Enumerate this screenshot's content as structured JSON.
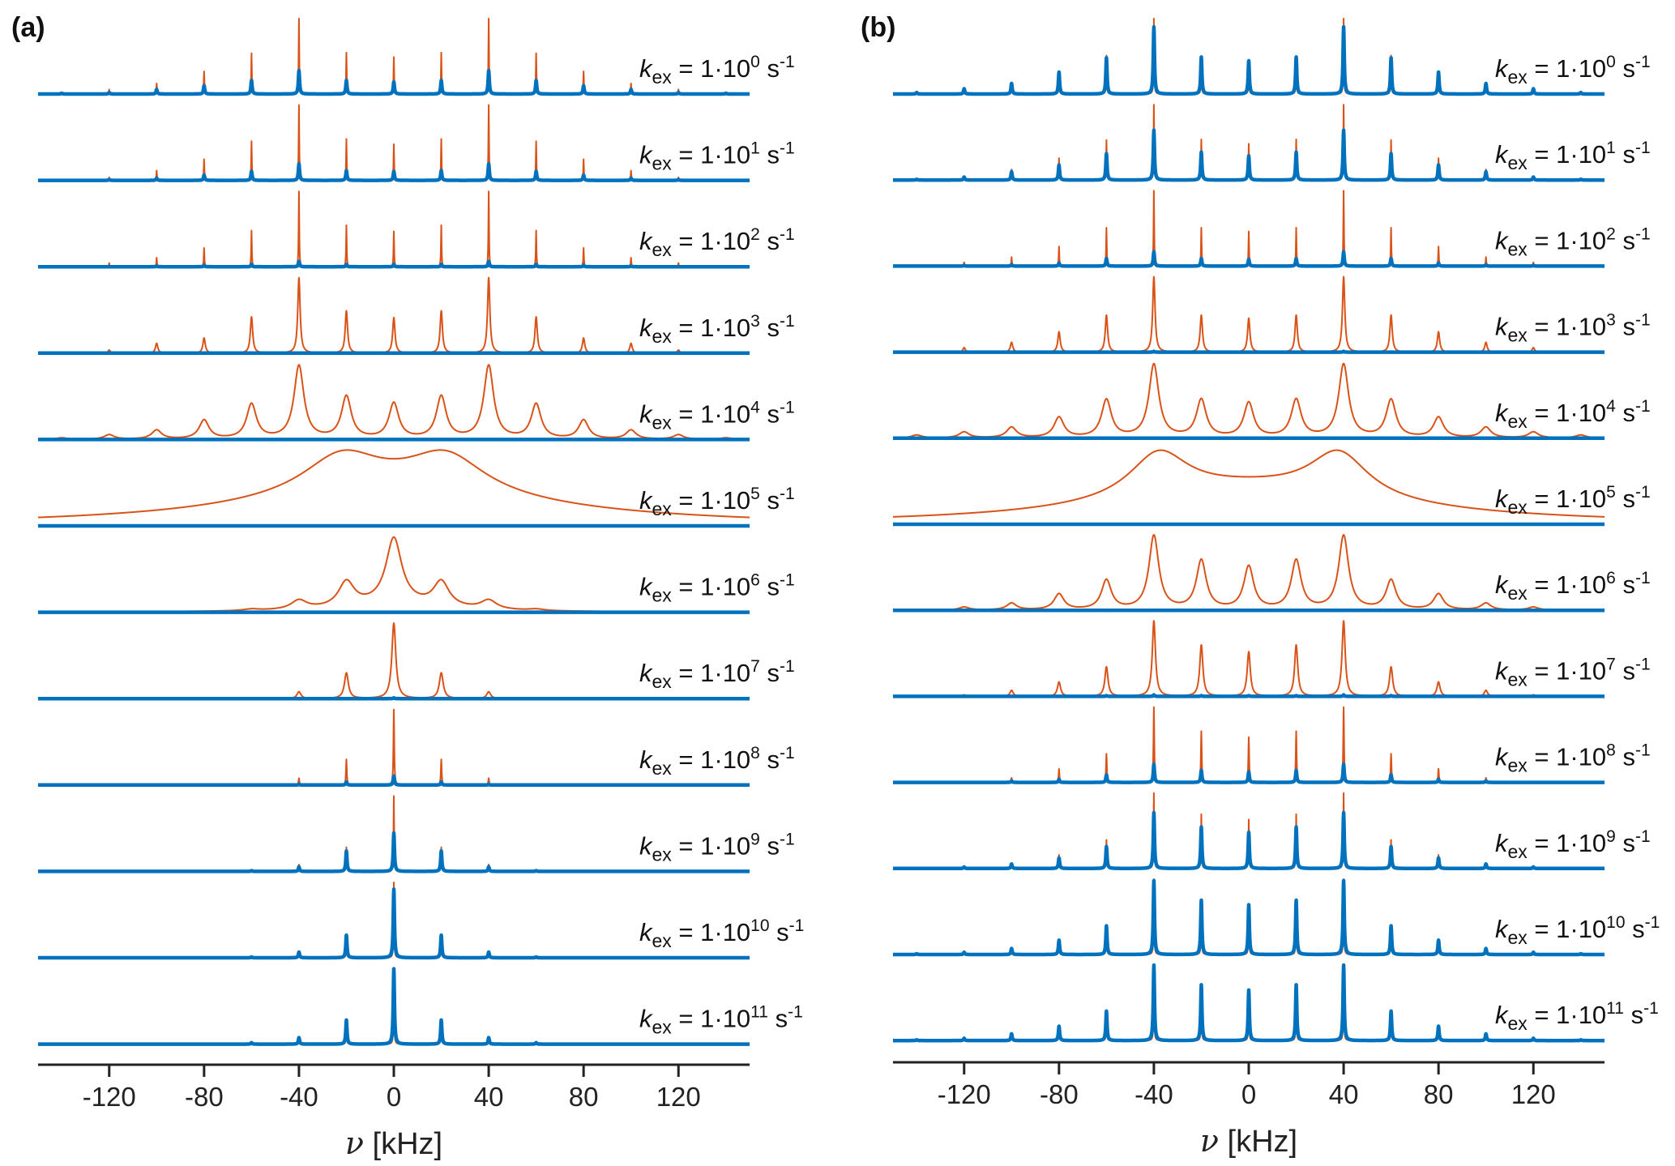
{
  "chart_data": [
    {
      "type": "line",
      "panel_label": "(a)",
      "xlabel_symbol": "ν",
      "xlabel_unit": " [kHz]",
      "xlim": [
        -150,
        150
      ],
      "x_tick_values": [
        -120,
        -80,
        -40,
        0,
        40,
        80,
        120
      ],
      "x_ticks": [
        "-120",
        "-80",
        "-40",
        "0",
        "40",
        "80",
        "120"
      ],
      "grid": false,
      "sideband_spacing_khz": 20,
      "series_colors": {
        "orange": "#D95319",
        "blue": "#0072BD"
      },
      "label_parts": {
        "symbol": "k",
        "subscript": "ex",
        "mantissa": " = 1·10",
        "unit": " s",
        "unit_exponent": "-1"
      },
      "traces": [
        {
          "exponent": "0",
          "orange": {
            "hwhm": 0.15,
            "amps": [
              0.49,
              0.55,
              1.0,
              0.54,
              0.3,
              0.14,
              0.06,
              0.02
            ]
          },
          "blue": {
            "hwhm": 0.3,
            "amps": [
              0.16,
              0.18,
              0.31,
              0.18,
              0.11,
              0.06,
              0.02,
              0.01
            ]
          }
        },
        {
          "exponent": "1",
          "orange": {
            "hwhm": 0.15,
            "amps": [
              0.48,
              0.55,
              1.0,
              0.52,
              0.28,
              0.13,
              0.04,
              0.01
            ]
          },
          "blue": {
            "hwhm": 0.3,
            "amps": [
              0.12,
              0.13,
              0.22,
              0.12,
              0.07,
              0.03,
              0.01,
              0
            ]
          }
        },
        {
          "exponent": "2",
          "orange": {
            "hwhm": 0.15,
            "amps": [
              0.47,
              0.55,
              1.0,
              0.48,
              0.25,
              0.12,
              0.05,
              0.01
            ]
          },
          "blue": {
            "hwhm": 0.3,
            "amps": [
              0.03,
              0.03,
              0.07,
              0.03,
              0.02,
              0.01,
              0,
              0
            ]
          }
        },
        {
          "exponent": "3",
          "orange": {
            "hwhm": 0.6,
            "amps": [
              0.47,
              0.56,
              1.0,
              0.48,
              0.2,
              0.13,
              0.04,
              0.01
            ]
          },
          "blue": {
            "hwhm": 0.3,
            "amps": [
              0,
              0,
              0,
              0,
              0,
              0,
              0,
              0
            ]
          }
        },
        {
          "exponent": "4",
          "orange": {
            "hwhm": 2.5,
            "amps": [
              0.47,
              0.56,
              0.97,
              0.46,
              0.25,
              0.12,
              0.06,
              0.02
            ]
          },
          "blue": {
            "hwhm": 0.3,
            "amps": [
              0,
              0,
              0,
              0,
              0,
              0,
              0,
              0
            ]
          }
        },
        {
          "exponent": "5",
          "orange": {
            "components": [
              [
                -22,
                0.52,
                20
              ],
              [
                22,
                0.52,
                20
              ],
              [
                0,
                0.42,
                80
              ]
            ]
          },
          "blue": {
            "hwhm": 0.3,
            "amps": [
              0,
              0,
              0,
              0,
              0,
              0,
              0,
              0
            ]
          }
        },
        {
          "exponent": "6",
          "orange": {
            "hwhm": 4,
            "amps": [
              0.87,
              0.33,
              0.12,
              0.02,
              0,
              0,
              0,
              0
            ],
            "components": [
              [
                0,
                0.1,
                25
              ]
            ]
          },
          "blue": {
            "hwhm": 0.3,
            "amps": [
              0,
              0,
              0,
              0,
              0,
              0,
              0,
              0
            ]
          }
        },
        {
          "exponent": "7",
          "orange": {
            "hwhm": 1.0,
            "amps": [
              1.0,
              0.34,
              0.09,
              0.01,
              0,
              0,
              0,
              0
            ]
          },
          "blue": {
            "hwhm": 0.3,
            "amps": [
              0.01,
              0,
              0,
              0,
              0,
              0,
              0,
              0
            ]
          }
        },
        {
          "exponent": "8",
          "orange": {
            "hwhm": 0.2,
            "amps": [
              1.0,
              0.34,
              0.09,
              0.01,
              0,
              0,
              0,
              0
            ]
          },
          "blue": {
            "hwhm": 0.3,
            "amps": [
              0.12,
              0.04,
              0.01,
              0,
              0,
              0,
              0,
              0
            ]
          }
        },
        {
          "exponent": "9",
          "orange": {
            "hwhm": 0.15,
            "amps": [
              1.0,
              0.32,
              0.09,
              0.01,
              0,
              0,
              0,
              0
            ]
          },
          "blue": {
            "hwhm": 0.3,
            "amps": [
              0.51,
              0.27,
              0.06,
              0.01,
              0,
              0,
              0,
              0
            ]
          }
        },
        {
          "exponent": "10",
          "orange": {
            "hwhm": 0.15,
            "amps": [
              1.0,
              0.3,
              0.075,
              0.01,
              0,
              0,
              0,
              0
            ]
          },
          "blue": {
            "hwhm": 0.3,
            "amps": [
              0.91,
              0.3,
              0.075,
              0.01,
              0,
              0,
              0,
              0
            ]
          }
        },
        {
          "exponent": "11",
          "orange": {
            "hwhm": 0.15,
            "amps": [
              1.0,
              0.32,
              0.086,
              0.02,
              0,
              0,
              0,
              0
            ]
          },
          "blue": {
            "hwhm": 0.3,
            "amps": [
              1.0,
              0.32,
              0.086,
              0.02,
              0,
              0,
              0,
              0
            ]
          }
        }
      ]
    },
    {
      "type": "line",
      "panel_label": "(b)",
      "xlabel_symbol": "ν",
      "xlabel_unit": " [kHz]",
      "xlim": [
        -150,
        150
      ],
      "x_tick_values": [
        -120,
        -80,
        -40,
        0,
        40,
        80,
        120
      ],
      "x_ticks": [
        "-120",
        "-80",
        "-40",
        "0",
        "40",
        "80",
        "120"
      ],
      "grid": false,
      "sideband_spacing_khz": 20,
      "series_colors": {
        "orange": "#D95319",
        "blue": "#0072BD"
      },
      "label_parts": {
        "symbol": "k",
        "subscript": "ex",
        "mantissa": " = 1·10",
        "unit": " s",
        "unit_exponent": "-1"
      },
      "traces": [
        {
          "exponent": "0",
          "orange": {
            "hwhm": 0.15,
            "amps": [
              0.45,
              0.5,
              1.0,
              0.51,
              0.3,
              0.15,
              0.08,
              0.02
            ]
          },
          "blue": {
            "hwhm": 0.3,
            "amps": [
              0.44,
              0.49,
              0.89,
              0.48,
              0.29,
              0.14,
              0.07,
              0.02
            ]
          }
        },
        {
          "exponent": "1",
          "orange": {
            "hwhm": 0.15,
            "amps": [
              0.48,
              0.54,
              1.0,
              0.53,
              0.29,
              0.14,
              0.05,
              0.01
            ]
          },
          "blue": {
            "hwhm": 0.3,
            "amps": [
              0.32,
              0.37,
              0.66,
              0.35,
              0.2,
              0.11,
              0.04,
              0.01
            ]
          }
        },
        {
          "exponent": "2",
          "orange": {
            "hwhm": 0.15,
            "amps": [
              0.46,
              0.51,
              1.0,
              0.51,
              0.26,
              0.12,
              0.05,
              0.01
            ]
          },
          "blue": {
            "hwhm": 0.3,
            "amps": [
              0.09,
              0.1,
              0.19,
              0.1,
              0.04,
              0.02,
              0.01,
              0
            ]
          }
        },
        {
          "exponent": "3",
          "orange": {
            "hwhm": 0.6,
            "amps": [
              0.45,
              0.49,
              1.0,
              0.49,
              0.27,
              0.13,
              0.06,
              0.01
            ]
          },
          "blue": {
            "hwhm": 0.3,
            "amps": [
              0,
              0,
              0.01,
              0,
              0,
              0,
              0,
              0
            ]
          }
        },
        {
          "exponent": "4",
          "orange": {
            "hwhm": 2.5,
            "amps": [
              0.46,
              0.5,
              0.97,
              0.5,
              0.27,
              0.14,
              0.08,
              0.04
            ]
          },
          "blue": {
            "hwhm": 0.3,
            "amps": [
              0,
              0,
              0,
              0,
              0,
              0,
              0,
              0
            ]
          }
        },
        {
          "exponent": "5",
          "orange": {
            "components": [
              [
                -38,
                0.596,
                15
              ],
              [
                38,
                0.596,
                15
              ],
              [
                0,
                0.469,
                70
              ]
            ]
          },
          "blue": {
            "hwhm": 0.3,
            "amps": [
              0,
              0,
              0,
              0,
              0,
              0,
              0,
              0
            ]
          }
        },
        {
          "exponent": "6",
          "orange": {
            "hwhm": 2.5,
            "amps": [
              0.57,
              0.65,
              0.98,
              0.39,
              0.21,
              0.09,
              0.04,
              0.01
            ]
          },
          "blue": {
            "hwhm": 0.3,
            "amps": [
              0,
              0,
              0,
              0,
              0,
              0,
              0,
              0
            ]
          }
        },
        {
          "exponent": "7",
          "orange": {
            "hwhm": 0.8,
            "amps": [
              0.59,
              0.68,
              1.0,
              0.39,
              0.19,
              0.08,
              0.02,
              0
            ]
          },
          "blue": {
            "hwhm": 0.3,
            "amps": [
              0.01,
              0.01,
              0.02,
              0.01,
              0,
              0,
              0,
              0
            ]
          }
        },
        {
          "exponent": "8",
          "orange": {
            "hwhm": 0.2,
            "amps": [
              0.6,
              0.68,
              1.0,
              0.38,
              0.18,
              0.06,
              0.01,
              0
            ]
          },
          "blue": {
            "hwhm": 0.3,
            "amps": [
              0.14,
              0.16,
              0.24,
              0.1,
              0.04,
              0.02,
              0,
              0
            ]
          }
        },
        {
          "exponent": "9",
          "orange": {
            "hwhm": 0.15,
            "amps": [
              0.65,
              0.72,
              1.0,
              0.38,
              0.18,
              0.07,
              0.02,
              0
            ]
          },
          "blue": {
            "hwhm": 0.3,
            "amps": [
              0.48,
              0.55,
              0.74,
              0.29,
              0.14,
              0.06,
              0.02,
              0
            ]
          }
        },
        {
          "exponent": "10",
          "orange": {
            "hwhm": 0.15,
            "amps": [
              0.67,
              0.73,
              1.0,
              0.38,
              0.19,
              0.08,
              0.03,
              0
            ]
          },
          "blue": {
            "hwhm": 0.3,
            "amps": [
              0.66,
              0.72,
              0.98,
              0.38,
              0.19,
              0.08,
              0.03,
              0.01
            ]
          }
        },
        {
          "exponent": "11",
          "orange": {
            "hwhm": 0.15,
            "amps": [
              0.67,
              0.74,
              1.0,
              0.39,
              0.19,
              0.09,
              0.03,
              0.01
            ]
          },
          "blue": {
            "hwhm": 0.3,
            "amps": [
              0.67,
              0.74,
              1.0,
              0.39,
              0.19,
              0.09,
              0.03,
              0.01
            ]
          }
        }
      ]
    }
  ]
}
